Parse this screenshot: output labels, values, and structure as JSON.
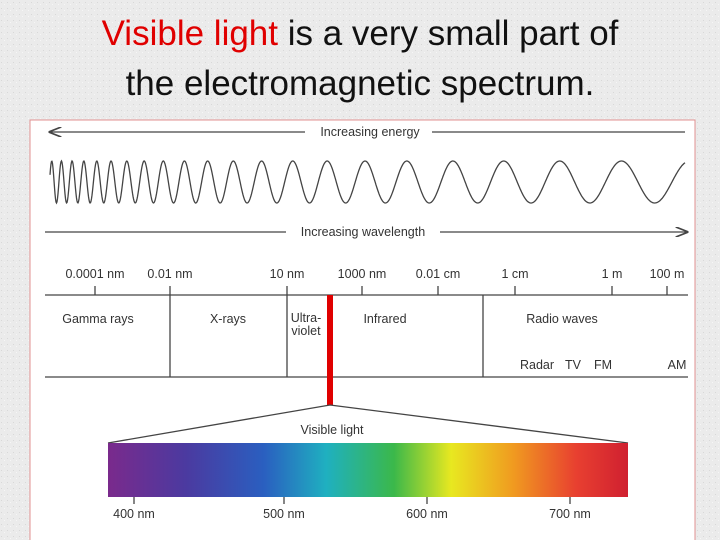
{
  "title": {
    "highlight": "Visible light",
    "line1_rest": "is a very small part of",
    "line2": "the electromagnetic spectrum."
  },
  "diagram": {
    "energy_label": "Increasing energy",
    "wavelength_label": "Increasing wavelength",
    "scale": [
      "0.0001 nm",
      "0.01 nm",
      "10 nm",
      "1000 nm",
      "0.01 cm",
      "1 cm",
      "1 m",
      "100 m"
    ],
    "regions": [
      "Gamma rays",
      "X-rays",
      "Ultra-",
      "violet",
      "Infrared",
      "Radio waves"
    ],
    "radio_bands": [
      "Radar",
      "TV",
      "FM",
      "AM"
    ],
    "visible_label": "Visible light",
    "visible_scale": [
      "400 nm",
      "500 nm",
      "600 nm",
      "700 nm"
    ]
  }
}
